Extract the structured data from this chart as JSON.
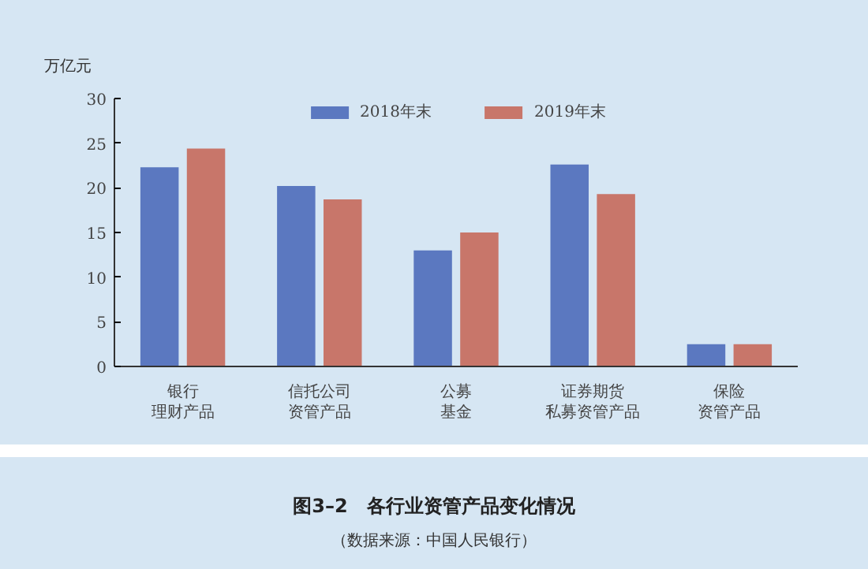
{
  "chart_data": {
    "type": "bar",
    "title": "图3–2　各行业资管产品变化情况",
    "annotations": [
      "（数据来源：中国人民银行）"
    ],
    "ylabel": "万亿元",
    "categories": [
      "银行理财产品",
      "信托公司资管产品",
      "公募基金",
      "证券期货私募资管产品",
      "保险资管产品"
    ],
    "series": [
      {
        "name": "2018年末",
        "color": "#5b78c0",
        "values": [
          22.3,
          20.2,
          13.0,
          22.6,
          2.5
        ]
      },
      {
        "name": "2019年末",
        "color": "#c8766a",
        "values": [
          24.4,
          18.7,
          15.0,
          19.3,
          2.5
        ]
      }
    ],
    "ylim": [
      0,
      30
    ],
    "yticks": [
      0,
      5,
      10,
      15,
      20,
      25,
      30
    ],
    "grid": false,
    "legend": "top"
  }
}
